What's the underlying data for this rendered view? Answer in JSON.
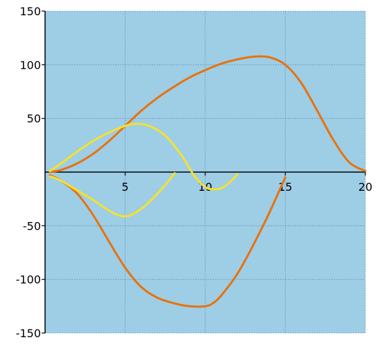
{
  "colors": {
    "plot_background": "#9ecde6",
    "grid": "#5a8aa6",
    "axis": "#000000",
    "orange": "#e8720c",
    "yellow": "#f5e22a"
  },
  "chart_data": {
    "type": "line",
    "title": "",
    "xlabel": "",
    "ylabel": "",
    "xlim": [
      0,
      20
    ],
    "ylim": [
      -150,
      150
    ],
    "grid": true,
    "legend": "none",
    "x_ticks": [
      {
        "value": 5,
        "label": "5"
      },
      {
        "value": 10,
        "label": "10"
      },
      {
        "value": 15,
        "label": "15"
      },
      {
        "value": 20,
        "label": "20"
      }
    ],
    "y_ticks": [
      {
        "value": 150,
        "label": "150"
      },
      {
        "value": 100,
        "label": "100"
      },
      {
        "value": 50,
        "label": "50"
      },
      {
        "value": -50,
        "label": "-50"
      },
      {
        "value": -100,
        "label": "-100"
      },
      {
        "value": -150,
        "label": "-150"
      }
    ],
    "series": [
      {
        "color": "orange",
        "points": [
          [
            0.3,
            0
          ],
          [
            1,
            2
          ],
          [
            2,
            8
          ],
          [
            3,
            17
          ],
          [
            4,
            29
          ],
          [
            5,
            43
          ],
          [
            6,
            57
          ],
          [
            7,
            69
          ],
          [
            8,
            79
          ],
          [
            9,
            88
          ],
          [
            10,
            95
          ],
          [
            11,
            101
          ],
          [
            12,
            105
          ],
          [
            13,
            107.5
          ],
          [
            14,
            107
          ],
          [
            15,
            100
          ],
          [
            16,
            83
          ],
          [
            17,
            57
          ],
          [
            18,
            30
          ],
          [
            19,
            9
          ],
          [
            20,
            1
          ]
        ]
      },
      {
        "color": "orange",
        "points": [
          [
            0.3,
            -3
          ],
          [
            1,
            -8
          ],
          [
            2,
            -20
          ],
          [
            3,
            -40
          ],
          [
            4,
            -65
          ],
          [
            5,
            -89
          ],
          [
            6,
            -107
          ],
          [
            7,
            -117
          ],
          [
            8,
            -122
          ],
          [
            9,
            -125
          ],
          [
            10,
            -125
          ],
          [
            10.5,
            -122
          ],
          [
            11,
            -115
          ],
          [
            12,
            -95
          ],
          [
            13,
            -68
          ],
          [
            14,
            -38
          ],
          [
            15,
            -5
          ]
        ]
      },
      {
        "color": "yellow",
        "points": [
          [
            0.3,
            1
          ],
          [
            1,
            8
          ],
          [
            2,
            19
          ],
          [
            3,
            29
          ],
          [
            4,
            37
          ],
          [
            5,
            43
          ],
          [
            5.7,
            45
          ],
          [
            6.5,
            43
          ],
          [
            7.5,
            34
          ],
          [
            8.5,
            16
          ],
          [
            9.3,
            -3
          ],
          [
            10,
            -14
          ],
          [
            10.5,
            -16
          ],
          [
            11,
            -15
          ],
          [
            11.5,
            -10
          ],
          [
            12,
            -2
          ]
        ]
      },
      {
        "color": "yellow",
        "points": [
          [
            0.3,
            -4
          ],
          [
            1,
            -8
          ],
          [
            2,
            -17
          ],
          [
            3,
            -26
          ],
          [
            4,
            -36
          ],
          [
            4.8,
            -41
          ],
          [
            5.5,
            -39
          ],
          [
            6.5,
            -28
          ],
          [
            7.5,
            -12
          ],
          [
            8.1,
            -1
          ]
        ]
      }
    ]
  }
}
